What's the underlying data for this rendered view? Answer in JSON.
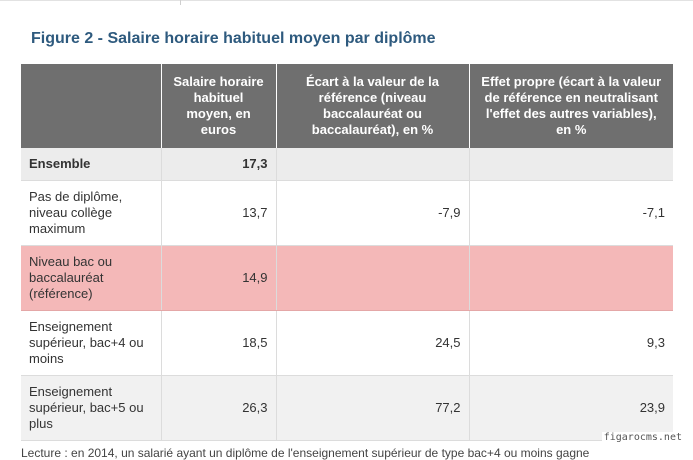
{
  "figure": {
    "title": "Figure 2 - Salaire horaire habituel moyen par diplôme"
  },
  "table": {
    "headers": [
      "",
      "Salaire horaire habituel moyen, en euros",
      "Écart à la valeur de la référence (niveau baccalauréat ou baccalauréat), en %",
      "Effet propre (écart à la valeur de référence en neutralisant l'effet des autres variables), en %"
    ],
    "rows": [
      {
        "label": "Ensemble",
        "salaire": "17,3",
        "ecart": "",
        "effet": ""
      },
      {
        "label": "Pas de diplôme, niveau collège maximum",
        "salaire": "13,7",
        "ecart": "-7,9",
        "effet": "-7,1"
      },
      {
        "label": "Niveau bac ou baccalauréat (référence)",
        "salaire": "14,9",
        "ecart": "",
        "effet": ""
      },
      {
        "label": "Enseignement supérieur, bac+4 ou moins",
        "salaire": "18,5",
        "ecart": "24,5",
        "effet": "9,3"
      },
      {
        "label": "Enseignement supérieur, bac+5 ou plus",
        "salaire": "26,3",
        "ecart": "77,2",
        "effet": "23,9"
      }
    ]
  },
  "footnote": "Lecture : en 2014, un salarié ayant un diplôme de l'enseignement supérieur de type bac+4 ou moins gagne",
  "watermark": "figarocms.net",
  "colors": {
    "title": "#2e5a7e",
    "header_bg": "#6f6f6f",
    "reference_row": "#f4b8b8"
  }
}
